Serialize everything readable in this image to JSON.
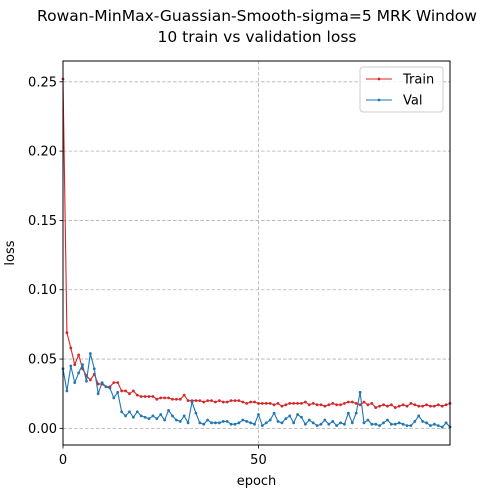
{
  "chart_data": {
    "type": "line",
    "title": [
      "Rowan-MinMax-Guassian-Smooth-sigma=5 MRK Window",
      "10 train vs validation loss"
    ],
    "xlabel": "epoch",
    "ylabel": "loss",
    "xlim": [
      0,
      99
    ],
    "ylim": [
      -0.012,
      0.265
    ],
    "xticks": [
      0,
      50
    ],
    "yticks": [
      0.0,
      0.05,
      0.1,
      0.15,
      0.2,
      0.25
    ],
    "ytick_labels": [
      "0.00",
      "0.05",
      "0.10",
      "0.15",
      "0.20",
      "0.25"
    ],
    "grid": true,
    "grid_style": "dashed",
    "legend": "top-right",
    "series": [
      {
        "name": "Train",
        "color": "#d62728",
        "values": [
          0.252,
          0.069,
          0.058,
          0.046,
          0.053,
          0.043,
          0.038,
          0.035,
          0.039,
          0.032,
          0.032,
          0.03,
          0.03,
          0.033,
          0.033,
          0.027,
          0.027,
          0.025,
          0.027,
          0.024,
          0.023,
          0.023,
          0.023,
          0.023,
          0.021,
          0.022,
          0.022,
          0.022,
          0.021,
          0.021,
          0.021,
          0.024,
          0.02,
          0.02,
          0.02,
          0.02,
          0.019,
          0.02,
          0.02,
          0.019,
          0.02,
          0.019,
          0.019,
          0.02,
          0.02,
          0.02,
          0.019,
          0.018,
          0.019,
          0.019,
          0.018,
          0.018,
          0.018,
          0.018,
          0.017,
          0.018,
          0.016,
          0.017,
          0.018,
          0.018,
          0.018,
          0.018,
          0.019,
          0.017,
          0.018,
          0.017,
          0.017,
          0.016,
          0.017,
          0.018,
          0.017,
          0.017,
          0.018,
          0.019,
          0.019,
          0.018,
          0.017,
          0.019,
          0.017,
          0.018,
          0.015,
          0.016,
          0.017,
          0.016,
          0.017,
          0.015,
          0.016,
          0.017,
          0.016,
          0.018,
          0.017,
          0.016,
          0.016,
          0.017,
          0.016,
          0.016,
          0.017,
          0.016,
          0.017,
          0.018
        ]
      },
      {
        "name": "Val",
        "color": "#1f77b4",
        "values": [
          0.043,
          0.027,
          0.045,
          0.033,
          0.04,
          0.046,
          0.034,
          0.054,
          0.043,
          0.025,
          0.033,
          0.03,
          0.029,
          0.022,
          0.026,
          0.012,
          0.009,
          0.012,
          0.008,
          0.012,
          0.009,
          0.008,
          0.007,
          0.009,
          0.007,
          0.01,
          0.006,
          0.013,
          0.009,
          0.006,
          0.005,
          0.009,
          0.004,
          0.019,
          0.011,
          0.004,
          0.003,
          0.006,
          0.004,
          0.004,
          0.004,
          0.005,
          0.005,
          0.003,
          0.003,
          0.004,
          0.006,
          0.005,
          0.004,
          0.003,
          0.01,
          0.002,
          0.004,
          0.006,
          0.011,
          0.005,
          0.004,
          0.007,
          0.009,
          0.004,
          0.01,
          0.008,
          0.003,
          0.006,
          0.004,
          0.002,
          0.003,
          0.006,
          0.003,
          0.005,
          0.002,
          0.004,
          0.003,
          0.011,
          0.004,
          0.011,
          0.026,
          0.004,
          0.006,
          0.003,
          0.003,
          0.002,
          0.004,
          0.006,
          0.003,
          0.003,
          0.004,
          0.003,
          0.002,
          0.002,
          0.005,
          0.009,
          0.005,
          0.004,
          0.002,
          0.003,
          0.002,
          0.001,
          0.004,
          0.001
        ]
      }
    ]
  }
}
